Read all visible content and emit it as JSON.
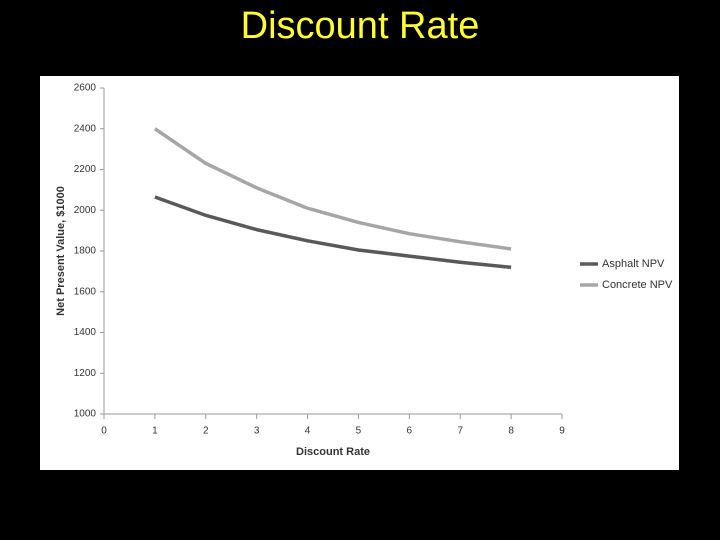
{
  "chart_data": {
    "type": "line",
    "title": "Discount Rate",
    "x_label": "Discount Rate",
    "y_label": "Net Present Value, $1000",
    "x": [
      1,
      2,
      3,
      4,
      5,
      6,
      7,
      8
    ],
    "series": [
      {
        "name": "Asphalt NPV",
        "color": "#595959",
        "values": [
          2065,
          1975,
          1905,
          1850,
          1805,
          1775,
          1745,
          1720
        ]
      },
      {
        "name": "Concrete NPV",
        "color": "#a6a6a6",
        "values": [
          2400,
          2230,
          2110,
          2010,
          1940,
          1885,
          1845,
          1810
        ]
      }
    ],
    "xlim": [
      0,
      9
    ],
    "xticks": [
      0,
      1,
      2,
      3,
      4,
      5,
      6,
      7,
      8,
      9
    ],
    "ylim": [
      1000,
      2600
    ],
    "yticks": [
      1000,
      1200,
      1400,
      1600,
      1800,
      2000,
      2200,
      2400,
      2600
    ],
    "grid": false,
    "legend": "right"
  }
}
